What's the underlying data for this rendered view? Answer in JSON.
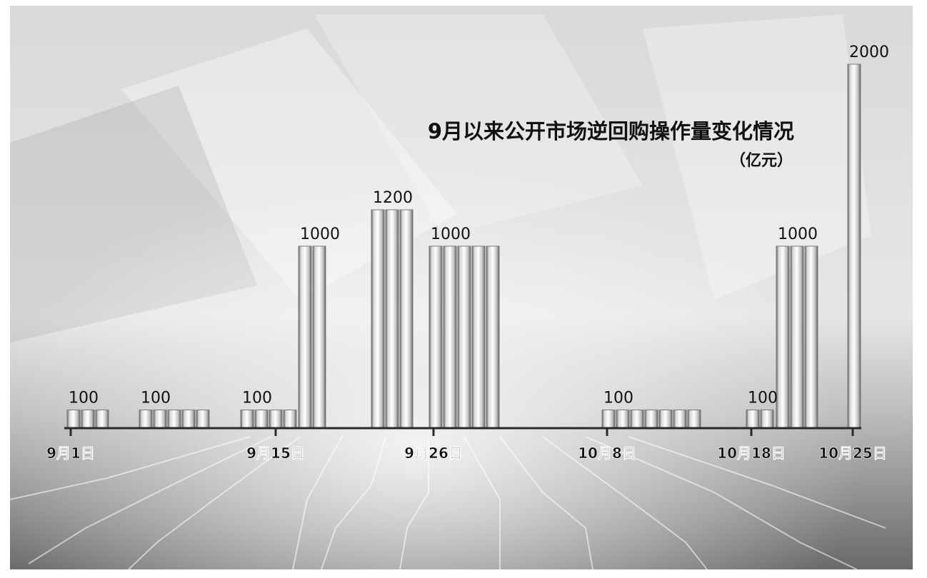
{
  "chart_data": {
    "type": "bar",
    "title": "9月以来公开市场逆回购操作量变化情况",
    "unit": "（亿元）",
    "xlabel": "",
    "ylabel": "",
    "ylim": [
      0,
      2000
    ],
    "grid": false,
    "legend": "none",
    "x_ticks": [
      "9月1日",
      "9月15日",
      "9月26日",
      "10月8日",
      "10月18日",
      "10月25日"
    ],
    "groups": [
      {
        "label": "100",
        "values": [
          100,
          100,
          100
        ]
      },
      {
        "label": "100",
        "values": [
          100,
          100,
          100,
          100,
          100
        ]
      },
      {
        "label": "100",
        "values": [
          100,
          100,
          100,
          100
        ]
      },
      {
        "label": "1000",
        "values": [
          1000,
          1000
        ]
      },
      {
        "label": "1200",
        "values": [
          1200,
          1200,
          1200
        ]
      },
      {
        "label": "1000",
        "values": [
          1000,
          1000,
          1000,
          1000,
          1000
        ]
      },
      {
        "label": "100",
        "values": [
          100,
          100,
          100,
          100,
          100,
          100,
          100
        ]
      },
      {
        "label": "100",
        "values": [
          100,
          100
        ]
      },
      {
        "label": "1000",
        "values": [
          1000,
          1000,
          1000
        ]
      },
      {
        "label": "2000",
        "values": [
          2000
        ]
      }
    ],
    "colors": {
      "bar_light": "#f4f4f4",
      "bar_dark": "#6e6e6e",
      "text": "#111111",
      "axis": "#2a2a2a"
    }
  }
}
